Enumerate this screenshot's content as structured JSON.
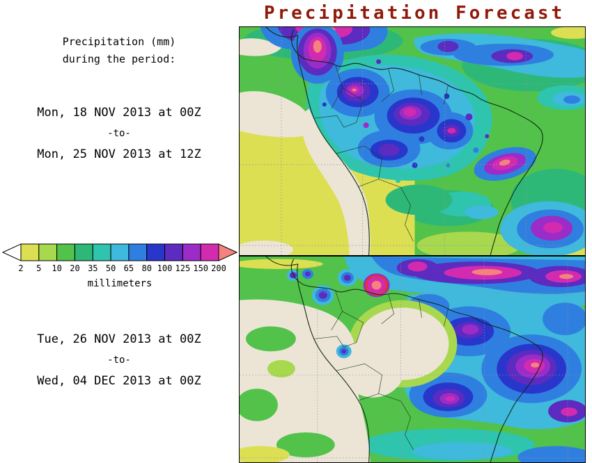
{
  "title": "Precipitation Forecast",
  "sidebar": {
    "heading_line1": "Precipitation (mm)",
    "heading_line2": "during the period:",
    "period1": {
      "from": "Mon, 18 NOV 2013 at 00Z",
      "separator": "-to-",
      "to": "Mon, 25 NOV 2013 at 12Z"
    },
    "period2": {
      "from": "Tue, 26 NOV 2013 at 00Z",
      "separator": "-to-",
      "to": "Wed, 04 DEC 2013 at 00Z"
    }
  },
  "colorbar": {
    "unit_label": "millimeters",
    "tick_values": [
      "2",
      "5",
      "10",
      "20",
      "35",
      "50",
      "65",
      "80",
      "100",
      "125",
      "150",
      "200"
    ],
    "segment_colors": [
      "#dcdf52",
      "#a8d84e",
      "#52c24b",
      "#2eb878",
      "#2fc4ae",
      "#3fb9dc",
      "#2f7fe0",
      "#2936cc",
      "#5c2bbf",
      "#9b2cc8",
      "#d32bb0"
    ],
    "under_arrow_color": "#ffffff",
    "over_arrow_color": "#f4837d"
  },
  "colors": {
    "title_text": "#8f1a0b",
    "body_text": "#000000",
    "background": "#ffffff"
  }
}
